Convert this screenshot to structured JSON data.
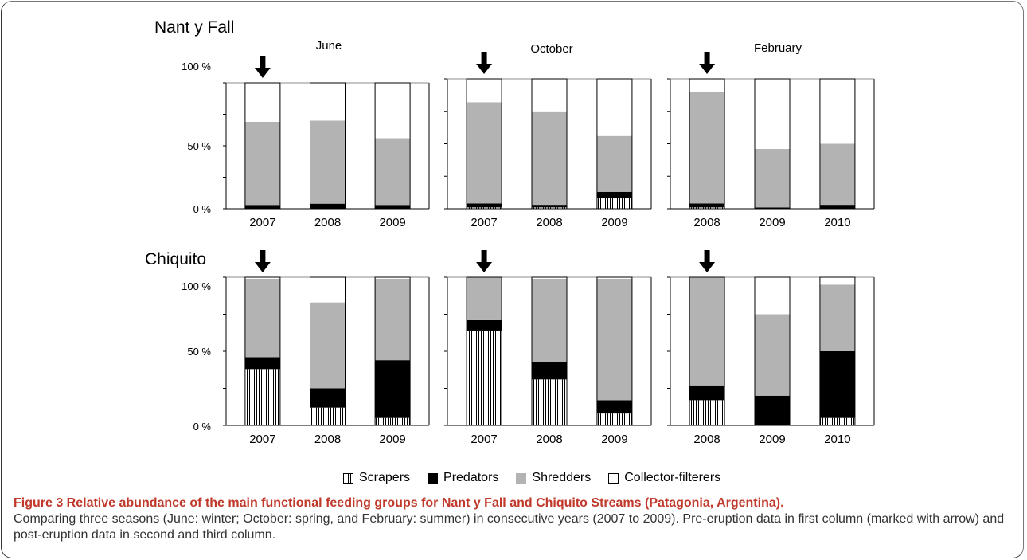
{
  "caption": {
    "title": "Figure 3 Relative abundance of the main functional feeding groups for Nant y Fall and Chiquito Streams (Patagonia, Argentina).",
    "body": "Comparing three seasons (June: winter; October: spring, and February: summer) in consecutive years (2007 to 2009). Pre-eruption data in first column (marked with arrow) and post-eruption data in second and third column."
  },
  "legend": [
    {
      "key": "scrapers",
      "label": "Scrapers"
    },
    {
      "key": "predators",
      "label": "Predators"
    },
    {
      "key": "shredders",
      "label": "Shredders"
    },
    {
      "key": "collector",
      "label": "Collector-filterers"
    }
  ],
  "colors": {
    "predators": "#000000",
    "shredders": "#b3b3b3",
    "collector": "#ffffff",
    "scrapers_hatch": "#000000"
  },
  "y_tick_labels": [
    "0 %",
    "50 %",
    "100 %"
  ],
  "chart_data": [
    {
      "type": "bar",
      "stream": "Nant y Fall",
      "month": "June",
      "categories": [
        "2007",
        "2008",
        "2009"
      ],
      "arrow_on": "2007",
      "ylim": [
        0,
        100
      ],
      "series": [
        {
          "name": "Scrapers",
          "values": [
            0,
            0,
            0
          ]
        },
        {
          "name": "Predators",
          "values": [
            3,
            4,
            3
          ]
        },
        {
          "name": "Shredders",
          "values": [
            66,
            66,
            53
          ]
        },
        {
          "name": "Collector-filterers",
          "values": [
            31,
            30,
            44
          ]
        }
      ]
    },
    {
      "type": "bar",
      "stream": "",
      "month": "October",
      "categories": [
        "2007",
        "2008",
        "2009"
      ],
      "arrow_on": "2007",
      "ylim": [
        0,
        100
      ],
      "series": [
        {
          "name": "Scrapers",
          "values": [
            1,
            1,
            8
          ]
        },
        {
          "name": "Predators",
          "values": [
            3,
            2,
            5
          ]
        },
        {
          "name": "Shredders",
          "values": [
            78,
            72,
            43
          ]
        },
        {
          "name": "Collector-filterers",
          "values": [
            18,
            25,
            44
          ]
        }
      ]
    },
    {
      "type": "bar",
      "stream": "",
      "month": "February",
      "categories": [
        "2008",
        "2009",
        "2010"
      ],
      "arrow_on": "2008",
      "ylim": [
        0,
        100
      ],
      "series": [
        {
          "name": "Scrapers",
          "values": [
            1,
            0,
            0
          ]
        },
        {
          "name": "Predators",
          "values": [
            3,
            1,
            3
          ]
        },
        {
          "name": "Shredders",
          "values": [
            86,
            45,
            47
          ]
        },
        {
          "name": "Collector-filterers",
          "values": [
            10,
            54,
            50
          ]
        }
      ]
    },
    {
      "type": "bar",
      "stream": "Chiquito",
      "month": "",
      "categories": [
        "2007",
        "2008",
        "2009"
      ],
      "arrow_on": "2007",
      "ylim": [
        0,
        100
      ],
      "series": [
        {
          "name": "Scrapers",
          "values": [
            38,
            12,
            5
          ]
        },
        {
          "name": "Predators",
          "values": [
            8,
            13,
            39
          ]
        },
        {
          "name": "Shredders",
          "values": [
            53,
            58,
            55
          ]
        },
        {
          "name": "Collector-filterers",
          "values": [
            1,
            17,
            1
          ]
        }
      ]
    },
    {
      "type": "bar",
      "stream": "",
      "month": "",
      "categories": [
        "2007",
        "2008",
        "2009"
      ],
      "arrow_on": "2007",
      "ylim": [
        0,
        100
      ],
      "series": [
        {
          "name": "Scrapers",
          "values": [
            64,
            31,
            8
          ]
        },
        {
          "name": "Predators",
          "values": [
            7,
            12,
            9
          ]
        },
        {
          "name": "Shredders",
          "values": [
            29,
            56,
            82
          ]
        },
        {
          "name": "Collector-filterers",
          "values": [
            0,
            1,
            1
          ]
        }
      ]
    },
    {
      "type": "bar",
      "stream": "",
      "month": "",
      "categories": [
        "2008",
        "2009",
        "2010"
      ],
      "arrow_on": "2008",
      "ylim": [
        0,
        100
      ],
      "series": [
        {
          "name": "Scrapers",
          "values": [
            17,
            0,
            5
          ]
        },
        {
          "name": "Predators",
          "values": [
            10,
            20,
            45
          ]
        },
        {
          "name": "Shredders",
          "values": [
            73,
            55,
            45
          ]
        },
        {
          "name": "Collector-filterers",
          "values": [
            0,
            25,
            5
          ]
        }
      ]
    }
  ]
}
